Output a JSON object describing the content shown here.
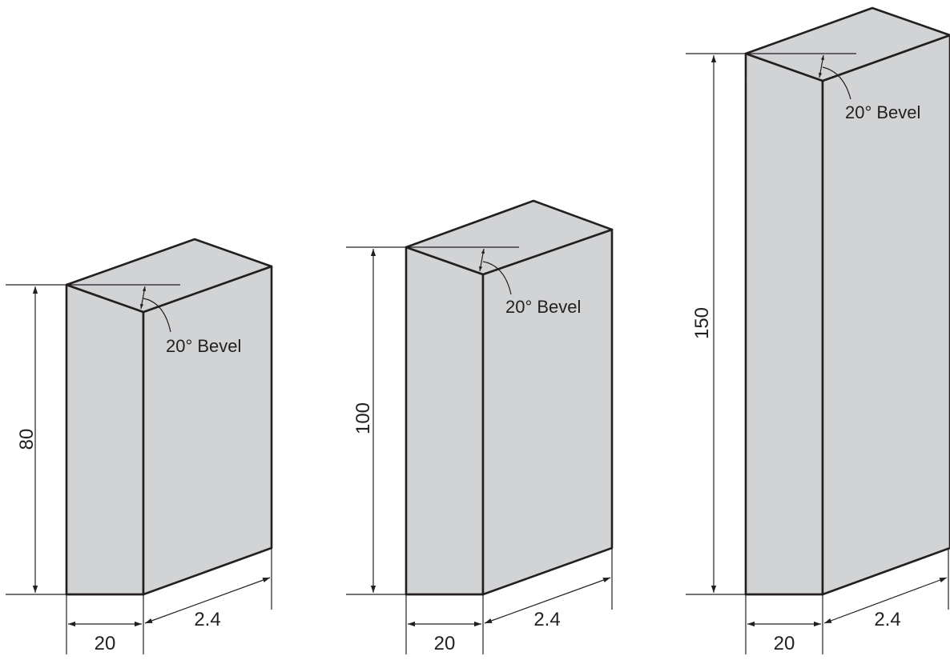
{
  "diagram": {
    "blocks": [
      {
        "id": "block-1",
        "height_label": "80",
        "width_label": "20",
        "depth_label": "2.4",
        "bevel_label": "20° Bevel"
      },
      {
        "id": "block-2",
        "height_label": "100",
        "width_label": "20",
        "depth_label": "2.4",
        "bevel_label": "20° Bevel"
      },
      {
        "id": "block-3",
        "height_label": "150",
        "width_label": "20",
        "depth_label": "2.4",
        "bevel_label": "20° Bevel"
      }
    ],
    "colors": {
      "face": "#d2d3d5",
      "line": "#231f20",
      "background": "#ffffff"
    }
  }
}
